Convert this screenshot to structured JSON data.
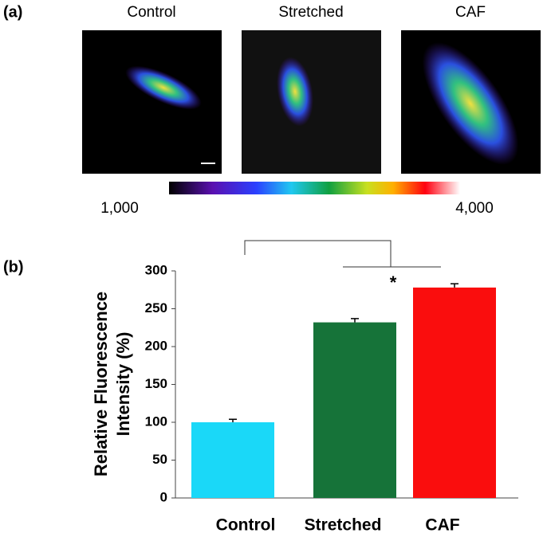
{
  "panel_a": {
    "label": "(a)",
    "images": [
      "Control",
      "Stretched",
      "CAF"
    ],
    "colorbar": {
      "ticks": [
        {
          "value": 1000,
          "label": "1,000"
        },
        {
          "value": 4000,
          "label": "4,000"
        }
      ]
    }
  },
  "chart_data": {
    "type": "bar",
    "label": "(b)",
    "ylabel": [
      "Relative Fluorescence",
      "Intensity (%)"
    ],
    "categories": [
      "Control",
      "Stretched",
      "CAF"
    ],
    "values": [
      100,
      232,
      278
    ],
    "errors": [
      4,
      5,
      5
    ],
    "colors": [
      "#1ad8f8",
      "#167339",
      "#fa0d0d"
    ],
    "annotation": "*",
    "ylim": [
      0,
      300
    ],
    "yticks": [
      0,
      50,
      100,
      150,
      200,
      250,
      300
    ]
  }
}
